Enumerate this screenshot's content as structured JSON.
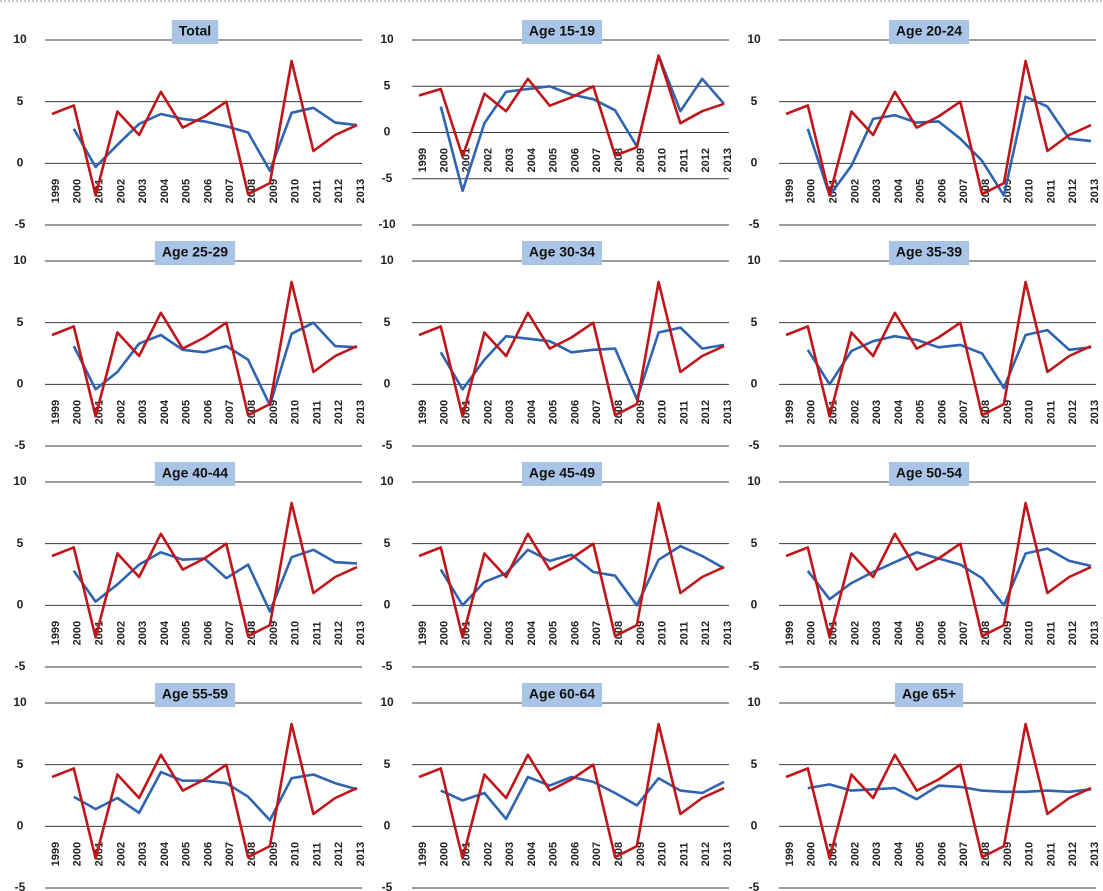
{
  "chart_data": [
    {
      "type": "line",
      "title": "Total",
      "categories": [
        1999,
        2000,
        2001,
        2002,
        2003,
        2004,
        2005,
        2006,
        2007,
        2008,
        2009,
        2010,
        2011,
        2012,
        2013
      ],
      "ylim": [
        -5,
        10
      ],
      "yticks": [
        10,
        5,
        0,
        -5
      ],
      "grid": true,
      "series": [
        {
          "color": "#2e64b0",
          "values": [
            null,
            2.8,
            -0.3,
            1.5,
            3.2,
            4.0,
            3.6,
            3.4,
            3.0,
            2.5,
            -0.6,
            4.1,
            4.5,
            3.3,
            3.1
          ]
        },
        {
          "color": "#c0161a",
          "values": [
            4.0,
            4.7,
            -2.6,
            4.2,
            2.3,
            5.8,
            2.9,
            3.8,
            5.0,
            -2.5,
            -1.6,
            8.3,
            1.0,
            2.3,
            3.1
          ]
        }
      ]
    },
    {
      "type": "line",
      "title": "Age 15-19",
      "categories": [
        1999,
        2000,
        2001,
        2002,
        2003,
        2004,
        2005,
        2006,
        2007,
        2008,
        2009,
        2010,
        2011,
        2012,
        2013
      ],
      "ylim": [
        -10,
        10
      ],
      "yticks": [
        10,
        5,
        0,
        -5,
        -10
      ],
      "grid": true,
      "series": [
        {
          "color": "#2e64b0",
          "values": [
            null,
            2.8,
            -6.3,
            1.0,
            4.4,
            4.7,
            5.0,
            4.1,
            3.6,
            2.4,
            -1.5,
            8.3,
            2.3,
            5.8,
            3.1
          ]
        },
        {
          "color": "#c0161a",
          "values": [
            4.0,
            4.7,
            -2.6,
            4.2,
            2.3,
            5.8,
            2.9,
            3.8,
            5.0,
            -2.5,
            -1.6,
            8.3,
            1.0,
            2.3,
            3.1
          ]
        }
      ]
    },
    {
      "type": "line",
      "title": "Age 20-24",
      "categories": [
        1999,
        2000,
        2001,
        2002,
        2003,
        2004,
        2005,
        2006,
        2007,
        2008,
        2009,
        2010,
        2011,
        2012,
        2013
      ],
      "ylim": [
        -5,
        10
      ],
      "yticks": [
        10,
        5,
        0,
        -5
      ],
      "grid": true,
      "series": [
        {
          "color": "#2e64b0",
          "values": [
            null,
            2.8,
            -2.6,
            -0.2,
            3.6,
            3.9,
            3.3,
            3.4,
            2.0,
            0.2,
            -2.6,
            5.4,
            4.6,
            2.0,
            1.8
          ]
        },
        {
          "color": "#c0161a",
          "values": [
            4.0,
            4.7,
            -2.6,
            4.2,
            2.3,
            5.8,
            2.9,
            3.8,
            5.0,
            -2.5,
            -1.6,
            8.3,
            1.0,
            2.3,
            3.1
          ]
        }
      ]
    },
    {
      "type": "line",
      "title": "Age 25-29",
      "categories": [
        1999,
        2000,
        2001,
        2002,
        2003,
        2004,
        2005,
        2006,
        2007,
        2008,
        2009,
        2010,
        2011,
        2012,
        2013
      ],
      "ylim": [
        -5,
        10
      ],
      "yticks": [
        10,
        5,
        0,
        -5
      ],
      "grid": true,
      "series": [
        {
          "color": "#2e64b0",
          "values": [
            null,
            3.1,
            -0.4,
            1.0,
            3.3,
            4.0,
            2.8,
            2.6,
            3.1,
            2.0,
            -1.7,
            4.1,
            5.0,
            3.1,
            3.0
          ]
        },
        {
          "color": "#c0161a",
          "values": [
            4.0,
            4.7,
            -2.6,
            4.2,
            2.3,
            5.8,
            2.9,
            3.8,
            5.0,
            -2.5,
            -1.6,
            8.3,
            1.0,
            2.3,
            3.1
          ]
        }
      ]
    },
    {
      "type": "line",
      "title": "Age 30-34",
      "categories": [
        1999,
        2000,
        2001,
        2002,
        2003,
        2004,
        2005,
        2006,
        2007,
        2008,
        2009,
        2010,
        2011,
        2012,
        2013
      ],
      "ylim": [
        -5,
        10
      ],
      "yticks": [
        10,
        5,
        0,
        -5
      ],
      "grid": true,
      "series": [
        {
          "color": "#2e64b0",
          "values": [
            null,
            2.6,
            -0.4,
            2.0,
            3.9,
            3.7,
            3.5,
            2.6,
            2.8,
            2.9,
            -1.2,
            4.2,
            4.6,
            2.9,
            3.2
          ]
        },
        {
          "color": "#c0161a",
          "values": [
            4.0,
            4.7,
            -2.6,
            4.2,
            2.3,
            5.8,
            2.9,
            3.8,
            5.0,
            -2.5,
            -1.6,
            8.3,
            1.0,
            2.3,
            3.1
          ]
        }
      ]
    },
    {
      "type": "line",
      "title": "Age 35-39",
      "categories": [
        1999,
        2000,
        2001,
        2002,
        2003,
        2004,
        2005,
        2006,
        2007,
        2008,
        2009,
        2010,
        2011,
        2012,
        2013
      ],
      "ylim": [
        -5,
        10
      ],
      "yticks": [
        10,
        5,
        0,
        -5
      ],
      "grid": true,
      "series": [
        {
          "color": "#2e64b0",
          "values": [
            null,
            2.8,
            0.0,
            2.7,
            3.5,
            3.9,
            3.6,
            3.0,
            3.2,
            2.5,
            -0.3,
            4.0,
            4.4,
            2.8,
            3.0
          ]
        },
        {
          "color": "#c0161a",
          "values": [
            4.0,
            4.7,
            -2.6,
            4.2,
            2.3,
            5.8,
            2.9,
            3.8,
            5.0,
            -2.5,
            -1.6,
            8.3,
            1.0,
            2.3,
            3.1
          ]
        }
      ]
    },
    {
      "type": "line",
      "title": "Age 40-44",
      "categories": [
        1999,
        2000,
        2001,
        2002,
        2003,
        2004,
        2005,
        2006,
        2007,
        2008,
        2009,
        2010,
        2011,
        2012,
        2013
      ],
      "ylim": [
        -5,
        10
      ],
      "yticks": [
        10,
        5,
        0,
        -5
      ],
      "grid": true,
      "series": [
        {
          "color": "#2e64b0",
          "values": [
            null,
            2.8,
            0.3,
            1.7,
            3.3,
            4.3,
            3.7,
            3.8,
            2.2,
            3.3,
            -0.5,
            3.9,
            4.5,
            3.5,
            3.4
          ]
        },
        {
          "color": "#c0161a",
          "values": [
            4.0,
            4.7,
            -2.6,
            4.2,
            2.3,
            5.8,
            2.9,
            3.8,
            5.0,
            -2.5,
            -1.6,
            8.3,
            1.0,
            2.3,
            3.1
          ]
        }
      ]
    },
    {
      "type": "line",
      "title": "Age 45-49",
      "categories": [
        1999,
        2000,
        2001,
        2002,
        2003,
        2004,
        2005,
        2006,
        2007,
        2008,
        2009,
        2010,
        2011,
        2012,
        2013
      ],
      "ylim": [
        -5,
        10
      ],
      "yticks": [
        10,
        5,
        0,
        -5
      ],
      "grid": true,
      "series": [
        {
          "color": "#2e64b0",
          "values": [
            null,
            2.9,
            0.0,
            1.9,
            2.6,
            4.5,
            3.6,
            4.1,
            2.7,
            2.4,
            0.0,
            3.7,
            4.8,
            4.0,
            3.0
          ]
        },
        {
          "color": "#c0161a",
          "values": [
            4.0,
            4.7,
            -2.6,
            4.2,
            2.3,
            5.8,
            2.9,
            3.8,
            5.0,
            -2.5,
            -1.6,
            8.3,
            1.0,
            2.3,
            3.1
          ]
        }
      ]
    },
    {
      "type": "line",
      "title": "Age 50-54",
      "categories": [
        1999,
        2000,
        2001,
        2002,
        2003,
        2004,
        2005,
        2006,
        2007,
        2008,
        2009,
        2010,
        2011,
        2012,
        2013
      ],
      "ylim": [
        -5,
        10
      ],
      "yticks": [
        10,
        5,
        0,
        -5
      ],
      "grid": true,
      "series": [
        {
          "color": "#2e64b0",
          "values": [
            null,
            2.8,
            0.5,
            1.8,
            2.7,
            3.5,
            4.3,
            3.8,
            3.3,
            2.2,
            0.0,
            4.2,
            4.6,
            3.6,
            3.2
          ]
        },
        {
          "color": "#c0161a",
          "values": [
            4.0,
            4.7,
            -2.6,
            4.2,
            2.3,
            5.8,
            2.9,
            3.8,
            5.0,
            -2.5,
            -1.6,
            8.3,
            1.0,
            2.3,
            3.1
          ]
        }
      ]
    },
    {
      "type": "line",
      "title": "Age 55-59",
      "categories": [
        1999,
        2000,
        2001,
        2002,
        2003,
        2004,
        2005,
        2006,
        2007,
        2008,
        2009,
        2010,
        2011,
        2012,
        2013
      ],
      "ylim": [
        -5,
        10
      ],
      "yticks": [
        10,
        5,
        0,
        -5
      ],
      "grid": true,
      "series": [
        {
          "color": "#2e64b0",
          "values": [
            null,
            2.4,
            1.4,
            2.3,
            1.1,
            4.4,
            3.7,
            3.7,
            3.5,
            2.4,
            0.5,
            3.9,
            4.2,
            3.5,
            3.0
          ]
        },
        {
          "color": "#c0161a",
          "values": [
            4.0,
            4.7,
            -2.6,
            4.2,
            2.3,
            5.8,
            2.9,
            3.8,
            5.0,
            -2.5,
            -1.6,
            8.3,
            1.0,
            2.3,
            3.1
          ]
        }
      ]
    },
    {
      "type": "line",
      "title": "Age 60-64",
      "categories": [
        1999,
        2000,
        2001,
        2002,
        2003,
        2004,
        2005,
        2006,
        2007,
        2008,
        2009,
        2010,
        2011,
        2012,
        2013
      ],
      "ylim": [
        -5,
        10
      ],
      "yticks": [
        10,
        5,
        0,
        -5
      ],
      "grid": true,
      "series": [
        {
          "color": "#2e64b0",
          "values": [
            null,
            2.9,
            2.1,
            2.7,
            0.6,
            4.0,
            3.3,
            4.0,
            3.6,
            2.7,
            1.7,
            3.9,
            2.9,
            2.7,
            3.6
          ]
        },
        {
          "color": "#c0161a",
          "values": [
            4.0,
            4.7,
            -2.6,
            4.2,
            2.3,
            5.8,
            2.9,
            3.8,
            5.0,
            -2.5,
            -1.6,
            8.3,
            1.0,
            2.3,
            3.1
          ]
        }
      ]
    },
    {
      "type": "line",
      "title": "Age 65+",
      "categories": [
        1999,
        2000,
        2001,
        2002,
        2003,
        2004,
        2005,
        2006,
        2007,
        2008,
        2009,
        2010,
        2011,
        2012,
        2013
      ],
      "ylim": [
        -5,
        10
      ],
      "yticks": [
        10,
        5,
        0,
        -5
      ],
      "grid": true,
      "series": [
        {
          "color": "#2e64b0",
          "values": [
            null,
            3.1,
            3.4,
            2.9,
            3.0,
            3.1,
            2.2,
            3.3,
            3.2,
            2.9,
            2.8,
            2.8,
            2.9,
            2.8,
            3.0
          ]
        },
        {
          "color": "#c0161a",
          "values": [
            4.0,
            4.7,
            -2.6,
            4.2,
            2.3,
            5.8,
            2.9,
            3.8,
            5.0,
            -2.5,
            -1.6,
            8.3,
            1.0,
            2.3,
            3.1
          ]
        }
      ]
    }
  ]
}
